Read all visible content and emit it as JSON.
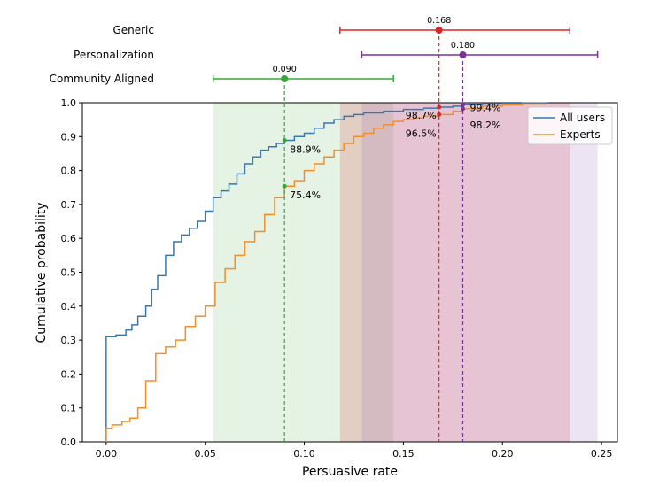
{
  "chart_data": {
    "type": "line",
    "xlabel": "Persuasive rate",
    "ylabel": "Cumulative probability",
    "xlim": [
      -0.012,
      0.258
    ],
    "ylim": [
      0,
      1.0
    ],
    "xticks": [
      0.0,
      0.05,
      0.1,
      0.15,
      0.2,
      0.25
    ],
    "xtick_labels": [
      "0.00",
      "0.05",
      "0.10",
      "0.15",
      "0.20",
      "0.25"
    ],
    "yticks": [
      0.0,
      0.1,
      0.2,
      0.3,
      0.4,
      0.5,
      0.6,
      0.7,
      0.8,
      0.9,
      1.0
    ],
    "ytick_labels": [
      "0.0",
      "0.1",
      "0.2",
      "0.3",
      "0.4",
      "0.5",
      "0.6",
      "0.7",
      "0.8",
      "0.9",
      "1.0"
    ],
    "legend_position": "top-right",
    "series": [
      {
        "name": "All users",
        "color": "#3a76af",
        "x": [
          0.0,
          0.0,
          0.005,
          0.01,
          0.013,
          0.016,
          0.02,
          0.023,
          0.026,
          0.03,
          0.034,
          0.038,
          0.042,
          0.046,
          0.05,
          0.054,
          0.058,
          0.062,
          0.066,
          0.07,
          0.074,
          0.078,
          0.082,
          0.086,
          0.09,
          0.095,
          0.1,
          0.105,
          0.11,
          0.115,
          0.12,
          0.125,
          0.13,
          0.14,
          0.15,
          0.16,
          0.168,
          0.175,
          0.18,
          0.19,
          0.2,
          0.21,
          0.223
        ],
        "y": [
          0.0,
          0.31,
          0.315,
          0.33,
          0.345,
          0.37,
          0.4,
          0.45,
          0.49,
          0.55,
          0.59,
          0.61,
          0.63,
          0.65,
          0.68,
          0.72,
          0.74,
          0.76,
          0.79,
          0.82,
          0.84,
          0.86,
          0.87,
          0.88,
          0.889,
          0.9,
          0.91,
          0.925,
          0.94,
          0.95,
          0.96,
          0.965,
          0.97,
          0.975,
          0.98,
          0.984,
          0.987,
          0.99,
          0.994,
          0.996,
          0.998,
          0.999,
          1.0
        ]
      },
      {
        "name": "Experts",
        "color": "#f28e2b",
        "x": [
          0.0,
          0.0,
          0.003,
          0.008,
          0.012,
          0.016,
          0.02,
          0.025,
          0.03,
          0.035,
          0.04,
          0.045,
          0.05,
          0.055,
          0.06,
          0.065,
          0.07,
          0.075,
          0.08,
          0.085,
          0.09,
          0.095,
          0.1,
          0.105,
          0.11,
          0.115,
          0.12,
          0.125,
          0.13,
          0.135,
          0.14,
          0.145,
          0.15,
          0.155,
          0.16,
          0.168,
          0.175,
          0.18,
          0.19,
          0.2,
          0.21,
          0.222
        ],
        "y": [
          0.0,
          0.04,
          0.05,
          0.06,
          0.07,
          0.1,
          0.18,
          0.26,
          0.28,
          0.3,
          0.34,
          0.37,
          0.4,
          0.47,
          0.51,
          0.55,
          0.59,
          0.62,
          0.67,
          0.72,
          0.754,
          0.77,
          0.8,
          0.82,
          0.84,
          0.86,
          0.88,
          0.9,
          0.91,
          0.925,
          0.935,
          0.945,
          0.95,
          0.955,
          0.96,
          0.965,
          0.975,
          0.982,
          0.99,
          0.993,
          0.996,
          0.998
        ]
      }
    ],
    "shaded_ranges": [
      {
        "name": "Community Aligned",
        "x0": 0.054,
        "x1": 0.145,
        "color": "#2ca02c",
        "opacity": 0.12
      },
      {
        "name": "Generic",
        "x0": 0.118,
        "x1": 0.234,
        "color": "#d62728",
        "opacity": 0.18
      },
      {
        "name": "Personalization",
        "x0": 0.129,
        "x1": 0.248,
        "color": "#9467bd",
        "opacity": 0.18
      }
    ],
    "intervals": [
      {
        "label": "Generic",
        "center": 0.168,
        "low": 0.118,
        "high": 0.234,
        "value_label": "0.168",
        "color": "#d62728"
      },
      {
        "label": "Personalization",
        "center": 0.18,
        "low": 0.129,
        "high": 0.248,
        "value_label": "0.180",
        "color": "#7b3294"
      },
      {
        "label": "Community Aligned",
        "center": 0.09,
        "low": 0.054,
        "high": 0.145,
        "value_label": "0.090",
        "color": "#3aa53a"
      }
    ],
    "annotations": [
      {
        "text": "88.9%",
        "x": 0.09,
        "y": 0.889,
        "side": "right",
        "color": "#3aa53a"
      },
      {
        "text": "75.4%",
        "x": 0.09,
        "y": 0.754,
        "side": "right",
        "color": "#3aa53a"
      },
      {
        "text": "98.7%",
        "x": 0.168,
        "y": 0.987,
        "side": "left",
        "color": "#d62728"
      },
      {
        "text": "96.5%",
        "x": 0.168,
        "y": 0.965,
        "side": "left",
        "color": "#d62728"
      },
      {
        "text": "99.4%",
        "x": 0.18,
        "y": 0.994,
        "side": "right",
        "color": "#7b3294"
      },
      {
        "text": "98.2%",
        "x": 0.18,
        "y": 0.982,
        "side": "right",
        "color": "#7b3294"
      }
    ]
  }
}
